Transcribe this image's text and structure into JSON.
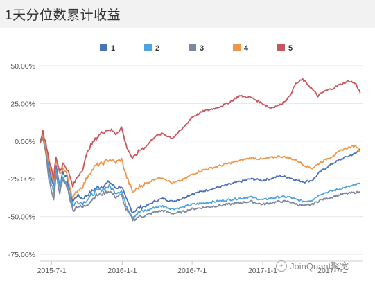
{
  "title": "1天分位数累计收益",
  "watermark": "JoinQuant聚宽",
  "chart_data": {
    "type": "line",
    "title": "1天分位数累计收益",
    "legend_position": "top-center",
    "grid": "horizontal",
    "ylim": [
      -75,
      50
    ],
    "yticks": [
      "-75.00%",
      "-50.00%",
      "-25.00%",
      "0.00%",
      "25.00%",
      "50.00%"
    ],
    "yticks_values": [
      -75,
      -50,
      -25,
      0,
      25,
      50
    ],
    "xlim": [
      "2015-06-01",
      "2017-09-20"
    ],
    "xticks": [
      "2015-7-1",
      "2016-1-1",
      "2016-7-1",
      "2017-1-1",
      "2017-7-1"
    ],
    "xticks_dates": [
      "2015-07-01",
      "2016-01-01",
      "2016-07-01",
      "2017-01-01",
      "2017-07-01"
    ],
    "series": [
      {
        "name": "1",
        "color": "#4a72b8",
        "points": [
          [
            "2015-06-01",
            0
          ],
          [
            "2015-06-08",
            5
          ],
          [
            "2015-06-15",
            -2
          ],
          [
            "2015-06-24",
            -18
          ],
          [
            "2015-07-06",
            -30
          ],
          [
            "2015-07-12",
            -15
          ],
          [
            "2015-07-22",
            -30
          ],
          [
            "2015-07-30",
            -20
          ],
          [
            "2015-08-10",
            -25
          ],
          [
            "2015-08-25",
            -40
          ],
          [
            "2015-09-05",
            -36
          ],
          [
            "2015-09-20",
            -38
          ],
          [
            "2015-10-05",
            -35
          ],
          [
            "2015-10-25",
            -31
          ],
          [
            "2015-11-10",
            -30
          ],
          [
            "2015-11-28",
            -27
          ],
          [
            "2015-12-15",
            -31
          ],
          [
            "2015-12-30",
            -30
          ],
          [
            "2016-01-10",
            -38
          ],
          [
            "2016-01-28",
            -47
          ],
          [
            "2016-02-15",
            -44
          ],
          [
            "2016-03-05",
            -43
          ],
          [
            "2016-03-25",
            -40
          ],
          [
            "2016-04-15",
            -38
          ],
          [
            "2016-05-10",
            -40
          ],
          [
            "2016-06-05",
            -38
          ],
          [
            "2016-07-01",
            -35
          ],
          [
            "2016-08-01",
            -33
          ],
          [
            "2016-09-01",
            -31
          ],
          [
            "2016-10-01",
            -29
          ],
          [
            "2016-11-01",
            -27
          ],
          [
            "2016-12-01",
            -25
          ],
          [
            "2017-01-01",
            -26
          ],
          [
            "2017-01-20",
            -25
          ],
          [
            "2017-02-15",
            -23
          ],
          [
            "2017-03-10",
            -24
          ],
          [
            "2017-04-01",
            -26
          ],
          [
            "2017-04-20",
            -27
          ],
          [
            "2017-05-10",
            -26
          ],
          [
            "2017-06-01",
            -20
          ],
          [
            "2017-07-01",
            -15
          ],
          [
            "2017-08-01",
            -11
          ],
          [
            "2017-09-01",
            -8
          ],
          [
            "2017-09-12",
            -5
          ]
        ]
      },
      {
        "name": "2",
        "color": "#4da3df",
        "points": [
          [
            "2015-06-01",
            0
          ],
          [
            "2015-06-08",
            4
          ],
          [
            "2015-06-15",
            -5
          ],
          [
            "2015-06-24",
            -22
          ],
          [
            "2015-07-06",
            -34
          ],
          [
            "2015-07-12",
            -18
          ],
          [
            "2015-07-22",
            -30
          ],
          [
            "2015-07-30",
            -24
          ],
          [
            "2015-08-10",
            -28
          ],
          [
            "2015-08-25",
            -43
          ],
          [
            "2015-09-05",
            -40
          ],
          [
            "2015-09-20",
            -41
          ],
          [
            "2015-10-05",
            -38
          ],
          [
            "2015-10-25",
            -33
          ],
          [
            "2015-11-10",
            -32
          ],
          [
            "2015-11-28",
            -30
          ],
          [
            "2015-12-15",
            -34
          ],
          [
            "2015-12-30",
            -33
          ],
          [
            "2016-01-10",
            -42
          ],
          [
            "2016-01-28",
            -50
          ],
          [
            "2016-02-15",
            -47
          ],
          [
            "2016-03-05",
            -46
          ],
          [
            "2016-03-25",
            -44
          ],
          [
            "2016-04-15",
            -43
          ],
          [
            "2016-05-10",
            -45
          ],
          [
            "2016-06-05",
            -44
          ],
          [
            "2016-07-01",
            -42
          ],
          [
            "2016-08-01",
            -41
          ],
          [
            "2016-09-01",
            -40
          ],
          [
            "2016-10-01",
            -39
          ],
          [
            "2016-11-01",
            -38
          ],
          [
            "2016-12-01",
            -37
          ],
          [
            "2017-01-01",
            -39
          ],
          [
            "2017-01-20",
            -38
          ],
          [
            "2017-02-15",
            -37
          ],
          [
            "2017-03-10",
            -37
          ],
          [
            "2017-04-01",
            -39
          ],
          [
            "2017-04-20",
            -40
          ],
          [
            "2017-05-10",
            -39
          ],
          [
            "2017-06-01",
            -35
          ],
          [
            "2017-07-01",
            -33
          ],
          [
            "2017-08-01",
            -31
          ],
          [
            "2017-09-01",
            -29
          ],
          [
            "2017-09-12",
            -28
          ]
        ]
      },
      {
        "name": "3",
        "color": "#7d879e",
        "points": [
          [
            "2015-06-01",
            0
          ],
          [
            "2015-06-08",
            3
          ],
          [
            "2015-06-15",
            -8
          ],
          [
            "2015-06-24",
            -25
          ],
          [
            "2015-07-06",
            -40
          ],
          [
            "2015-07-12",
            -22
          ],
          [
            "2015-07-22",
            -34
          ],
          [
            "2015-07-30",
            -26
          ],
          [
            "2015-08-10",
            -30
          ],
          [
            "2015-08-25",
            -46
          ],
          [
            "2015-09-05",
            -43
          ],
          [
            "2015-09-20",
            -44
          ],
          [
            "2015-10-05",
            -41
          ],
          [
            "2015-10-25",
            -36
          ],
          [
            "2015-11-10",
            -35
          ],
          [
            "2015-11-28",
            -33
          ],
          [
            "2015-12-15",
            -37
          ],
          [
            "2015-12-30",
            -36
          ],
          [
            "2016-01-10",
            -45
          ],
          [
            "2016-01-28",
            -52
          ],
          [
            "2016-02-15",
            -50
          ],
          [
            "2016-03-05",
            -49
          ],
          [
            "2016-03-25",
            -47
          ],
          [
            "2016-04-15",
            -46
          ],
          [
            "2016-05-10",
            -48
          ],
          [
            "2016-06-05",
            -47
          ],
          [
            "2016-07-01",
            -45
          ],
          [
            "2016-08-01",
            -44
          ],
          [
            "2016-09-01",
            -43
          ],
          [
            "2016-10-01",
            -42
          ],
          [
            "2016-11-01",
            -41
          ],
          [
            "2016-12-01",
            -40
          ],
          [
            "2017-01-01",
            -42
          ],
          [
            "2017-01-20",
            -41
          ],
          [
            "2017-02-15",
            -40
          ],
          [
            "2017-03-10",
            -40
          ],
          [
            "2017-04-01",
            -42
          ],
          [
            "2017-04-20",
            -43
          ],
          [
            "2017-05-10",
            -42
          ],
          [
            "2017-06-01",
            -39
          ],
          [
            "2017-07-01",
            -37
          ],
          [
            "2017-08-01",
            -35
          ],
          [
            "2017-09-01",
            -34
          ],
          [
            "2017-09-12",
            -34
          ]
        ]
      },
      {
        "name": "4",
        "color": "#f0964a",
        "points": [
          [
            "2015-06-01",
            0
          ],
          [
            "2015-06-08",
            5
          ],
          [
            "2015-06-15",
            -3
          ],
          [
            "2015-06-24",
            -15
          ],
          [
            "2015-07-06",
            -28
          ],
          [
            "2015-07-12",
            -12
          ],
          [
            "2015-07-22",
            -22
          ],
          [
            "2015-07-30",
            -18
          ],
          [
            "2015-08-10",
            -22
          ],
          [
            "2015-08-25",
            -38
          ],
          [
            "2015-09-05",
            -33
          ],
          [
            "2015-09-20",
            -30
          ],
          [
            "2015-10-05",
            -22
          ],
          [
            "2015-10-25",
            -16
          ],
          [
            "2015-11-10",
            -15
          ],
          [
            "2015-11-28",
            -12
          ],
          [
            "2015-12-15",
            -14
          ],
          [
            "2015-12-30",
            -12
          ],
          [
            "2016-01-10",
            -22
          ],
          [
            "2016-01-28",
            -34
          ],
          [
            "2016-02-15",
            -30
          ],
          [
            "2016-03-05",
            -28
          ],
          [
            "2016-03-25",
            -25
          ],
          [
            "2016-04-15",
            -24
          ],
          [
            "2016-05-10",
            -28
          ],
          [
            "2016-06-05",
            -26
          ],
          [
            "2016-07-01",
            -22
          ],
          [
            "2016-08-01",
            -19
          ],
          [
            "2016-09-01",
            -17
          ],
          [
            "2016-10-01",
            -15
          ],
          [
            "2016-11-01",
            -13
          ],
          [
            "2016-12-01",
            -11
          ],
          [
            "2017-01-01",
            -12
          ],
          [
            "2017-01-20",
            -11
          ],
          [
            "2017-02-15",
            -10
          ],
          [
            "2017-03-10",
            -11
          ],
          [
            "2017-04-01",
            -13
          ],
          [
            "2017-04-20",
            -16
          ],
          [
            "2017-05-10",
            -18
          ],
          [
            "2017-06-01",
            -14
          ],
          [
            "2017-07-01",
            -10
          ],
          [
            "2017-08-01",
            -5
          ],
          [
            "2017-09-01",
            -3
          ],
          [
            "2017-09-12",
            -7
          ]
        ]
      },
      {
        "name": "5",
        "color": "#c8565d",
        "points": [
          [
            "2015-06-01",
            0
          ],
          [
            "2015-06-08",
            6
          ],
          [
            "2015-06-15",
            0
          ],
          [
            "2015-06-24",
            -12
          ],
          [
            "2015-07-06",
            -25
          ],
          [
            "2015-07-12",
            -10
          ],
          [
            "2015-07-22",
            -20
          ],
          [
            "2015-07-30",
            -15
          ],
          [
            "2015-08-10",
            -18
          ],
          [
            "2015-08-25",
            -30
          ],
          [
            "2015-09-05",
            -24
          ],
          [
            "2015-09-20",
            -18
          ],
          [
            "2015-10-05",
            -5
          ],
          [
            "2015-10-25",
            2
          ],
          [
            "2015-11-10",
            6
          ],
          [
            "2015-11-28",
            8
          ],
          [
            "2015-12-15",
            5
          ],
          [
            "2015-12-30",
            9
          ],
          [
            "2016-01-10",
            -2
          ],
          [
            "2016-01-28",
            -12
          ],
          [
            "2016-02-15",
            -6
          ],
          [
            "2016-03-05",
            -3
          ],
          [
            "2016-03-25",
            3
          ],
          [
            "2016-04-15",
            5
          ],
          [
            "2016-05-10",
            2
          ],
          [
            "2016-06-05",
            8
          ],
          [
            "2016-07-01",
            16
          ],
          [
            "2016-08-01",
            20
          ],
          [
            "2016-09-01",
            22
          ],
          [
            "2016-10-01",
            25
          ],
          [
            "2016-11-01",
            30
          ],
          [
            "2016-12-01",
            29
          ],
          [
            "2017-01-01",
            25
          ],
          [
            "2017-01-20",
            22
          ],
          [
            "2017-02-15",
            24
          ],
          [
            "2017-03-10",
            29
          ],
          [
            "2017-03-28",
            38
          ],
          [
            "2017-04-15",
            41
          ],
          [
            "2017-05-05",
            36
          ],
          [
            "2017-05-25",
            30
          ],
          [
            "2017-06-10",
            33
          ],
          [
            "2017-07-01",
            35
          ],
          [
            "2017-07-25",
            38
          ],
          [
            "2017-08-15",
            40
          ],
          [
            "2017-09-01",
            38
          ],
          [
            "2017-09-12",
            32
          ]
        ]
      }
    ]
  }
}
